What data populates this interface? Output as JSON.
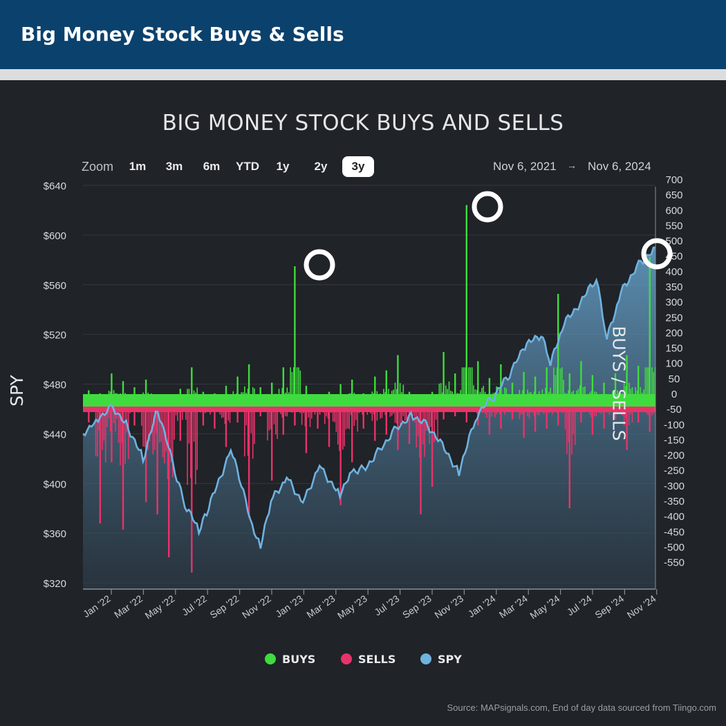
{
  "header": {
    "title": "Big Money Stock Buys & Sells"
  },
  "chart_controls": {
    "zoom_label": "Zoom",
    "zoom_options": [
      "1m",
      "3m",
      "6m",
      "YTD",
      "1y",
      "2y",
      "3y"
    ],
    "zoom_selected": "3y",
    "date_from": "Nov 6, 2021",
    "date_arrow": "→",
    "date_to": "Nov 6, 2024"
  },
  "legend": [
    {
      "label": "BUYS",
      "color": "#3fdc3f"
    },
    {
      "label": "SELLS",
      "color": "#e8336a"
    },
    {
      "label": "SPY",
      "color": "#6fb2e0"
    }
  ],
  "source": "Source: MAPsignals.com, End of day data sourced from Tiingo.com",
  "chart_data": {
    "type": "bar",
    "title": "BIG MONEY STOCK BUYS AND SELLS",
    "ylabel": "SPY",
    "y2label": "BUYS / SELLS",
    "ylim": [
      320,
      640
    ],
    "y2lim": [
      -620,
      700
    ],
    "y_ticks": [
      "$320",
      "$360",
      "$400",
      "$440",
      "$480",
      "$520",
      "$560",
      "$600",
      "$640"
    ],
    "y2_ticks": [
      "700",
      "650",
      "600",
      "550",
      "500",
      "450",
      "400",
      "350",
      "300",
      "250",
      "200",
      "150",
      "100",
      "50",
      "0",
      "-50",
      "-100",
      "-150",
      "-200",
      "-250",
      "-300",
      "-350",
      "-400",
      "-450",
      "-500",
      "-550"
    ],
    "x_ticks": [
      "Jan '22",
      "Mar '22",
      "May '22",
      "Jul '22",
      "Sep '22",
      "Nov '22",
      "Jan '23",
      "Mar '23",
      "May '23",
      "Jul '23",
      "Sep '23",
      "Nov '23",
      "Jan '24",
      "Mar '24",
      "May '24",
      "Jul '24",
      "Sep '24",
      "Nov '24"
    ],
    "grid": true,
    "series": [
      {
        "name": "SPY",
        "type": "area",
        "x": [
          "2021-11-06",
          "2021-12-01",
          "2022-01-03",
          "2022-02-01",
          "2022-03-01",
          "2022-03-29",
          "2022-05-01",
          "2022-05-20",
          "2022-06-16",
          "2022-07-01",
          "2022-08-16",
          "2022-09-01",
          "2022-09-30",
          "2022-10-12",
          "2022-11-01",
          "2022-12-01",
          "2023-01-01",
          "2023-02-02",
          "2023-03-13",
          "2023-04-01",
          "2023-05-01",
          "2023-06-01",
          "2023-07-03",
          "2023-07-31",
          "2023-09-01",
          "2023-10-27",
          "2023-12-01",
          "2024-01-02",
          "2024-02-01",
          "2024-03-01",
          "2024-04-01",
          "2024-04-19",
          "2024-05-15",
          "2024-07-16",
          "2024-08-05",
          "2024-09-01",
          "2024-10-01",
          "2024-11-06"
        ],
        "values": [
          440,
          452,
          462,
          445,
          420,
          460,
          410,
          383,
          362,
          376,
          428,
          404,
          360,
          348,
          386,
          405,
          385,
          415,
          390,
          410,
          413,
          430,
          447,
          455,
          445,
          410,
          456,
          470,
          488,
          510,
          520,
          496,
          528,
          564,
          516,
          554,
          575,
          590
        ]
      },
      {
        "name": "BUYS",
        "type": "bar",
        "values": [
          35,
          25,
          90,
          65,
          45,
          70,
          20,
          15,
          40,
          110,
          30,
          25,
          50,
          80,
          120,
          45,
          60,
          110,
          440,
          50,
          20,
          30,
          55,
          70,
          25,
          80,
          100,
          150,
          30,
          20,
          30,
          160,
          90,
          640,
          130,
          75,
          120,
          60,
          95,
          80,
          110,
          350,
          90,
          130,
          85,
          60,
          90,
          150,
          115,
          470
        ]
      },
      {
        "name": "SELLS",
        "type": "bar",
        "values": [
          -70,
          -400,
          -200,
          -420,
          -80,
          -330,
          -370,
          -510,
          -130,
          -560,
          -80,
          -90,
          -150,
          -70,
          -380,
          -50,
          -260,
          -110,
          -80,
          -170,
          -90,
          -150,
          -340,
          -200,
          -90,
          -130,
          -110,
          -160,
          -140,
          -370,
          -280,
          -60,
          -50,
          -70,
          -80,
          -110,
          -90,
          -60,
          -120,
          -100,
          -90,
          -80,
          -350,
          -70,
          -110,
          -90,
          -60,
          -160,
          -70,
          -100
        ]
      }
    ],
    "annotations": [
      "circle marker at Feb '23 BUYS peak",
      "circle marker at Dec '23 BUYS peak",
      "circle marker at Nov '24 BUYS peak"
    ]
  }
}
